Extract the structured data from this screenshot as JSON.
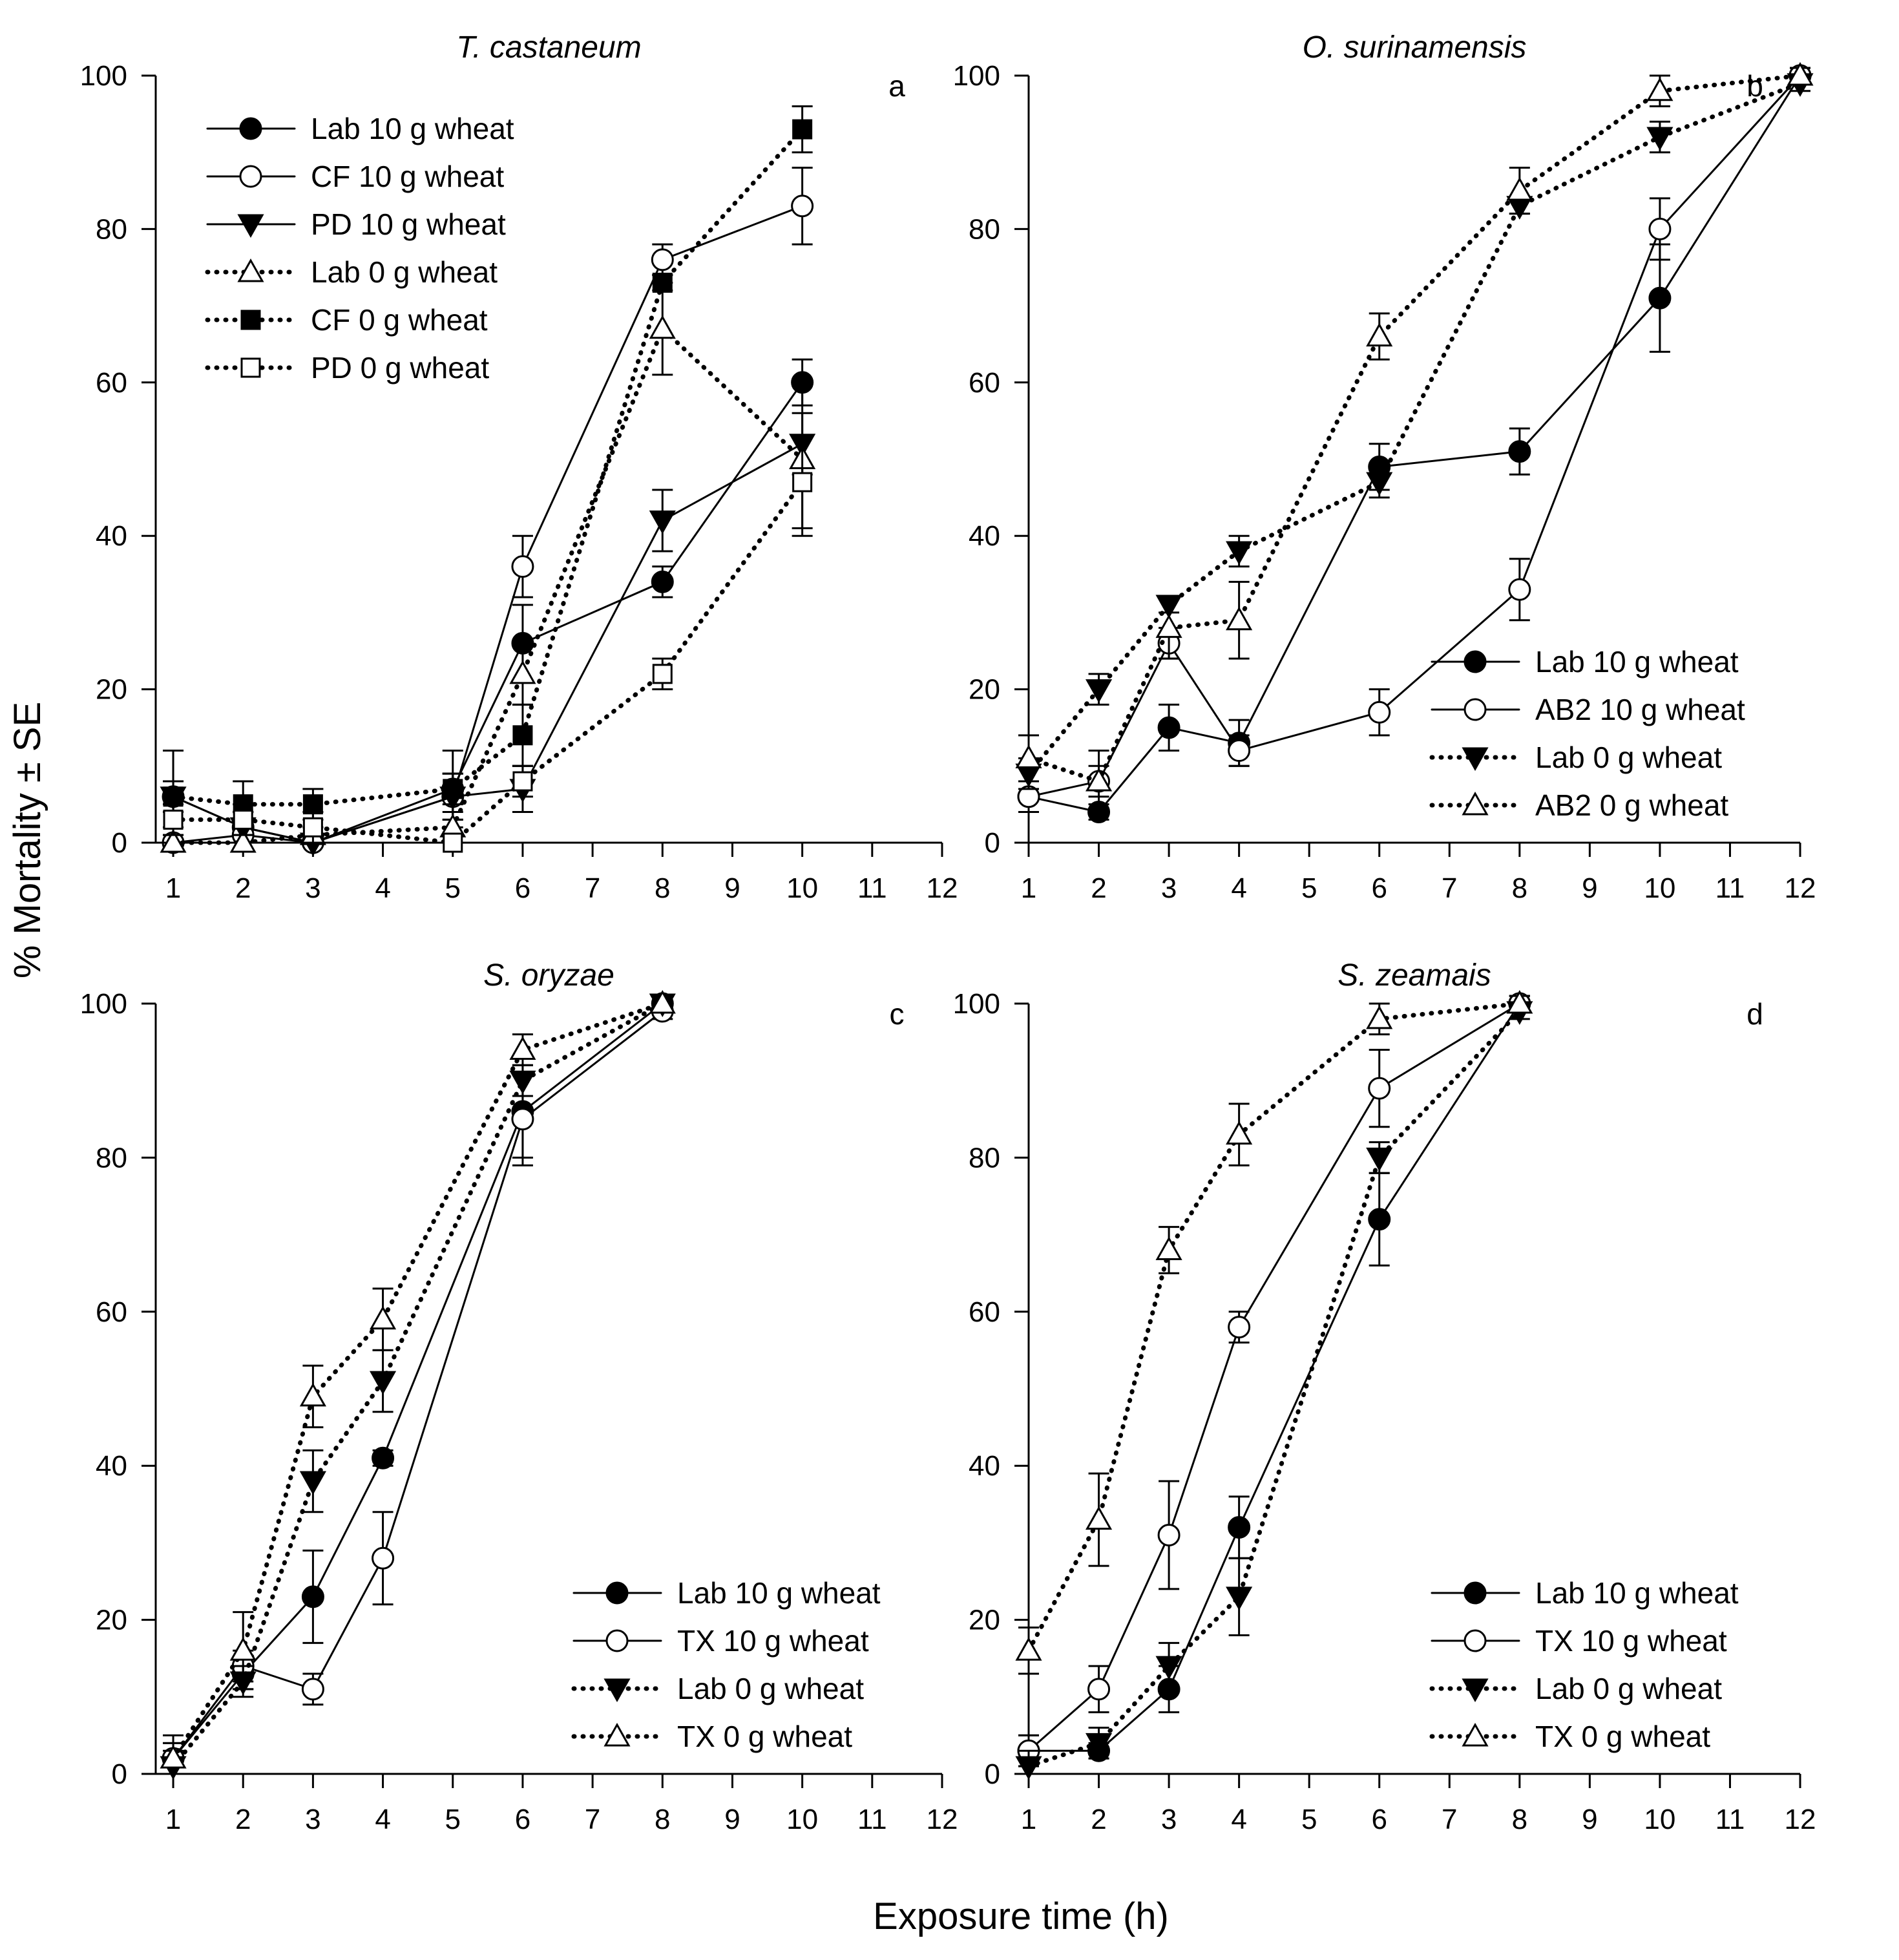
{
  "figure": {
    "ylabel": "% Mortality ± SE",
    "xlabel": "Exposure time (h)"
  },
  "chart_data": [
    {
      "type": "line",
      "panel": "a",
      "title": "T. castaneum",
      "xlim": [
        0.75,
        12
      ],
      "ylim": [
        0,
        100
      ],
      "xticks": [
        1,
        2,
        3,
        4,
        5,
        6,
        7,
        8,
        9,
        10,
        11,
        12
      ],
      "yticks": [
        0,
        20,
        40,
        60,
        80,
        100
      ],
      "legend_position": "top-left",
      "series": [
        {
          "name": "Lab 10 g wheat",
          "style": "solid",
          "marker": "circle-filled",
          "x": [
            1,
            2,
            3,
            5,
            6,
            8,
            10
          ],
          "y": [
            6,
            2,
            0,
            7,
            26,
            34,
            60
          ],
          "err": [
            6,
            2,
            1,
            5,
            5,
            2,
            3
          ]
        },
        {
          "name": "CF 10 g wheat",
          "style": "solid",
          "marker": "circle-open",
          "x": [
            1,
            2,
            3,
            5,
            6,
            8,
            10
          ],
          "y": [
            0,
            1,
            0,
            6,
            36,
            76,
            83
          ],
          "err": [
            2,
            2,
            1,
            3,
            4,
            2,
            5
          ]
        },
        {
          "name": "PD 10 g wheat",
          "style": "solid",
          "marker": "triangle-down-filled",
          "x": [
            1,
            2,
            3,
            5,
            6,
            8,
            10
          ],
          "y": [
            6,
            2,
            0,
            6,
            7,
            42,
            52
          ],
          "err": [
            2,
            2,
            1,
            3,
            3,
            4,
            4
          ]
        },
        {
          "name": "Lab 0 g wheat",
          "style": "dotted",
          "marker": "triangle-up-open",
          "x": [
            1,
            2,
            3,
            5,
            6,
            8,
            10
          ],
          "y": [
            0,
            0,
            1,
            2,
            22,
            67,
            50
          ],
          "err": [
            1,
            1,
            1,
            2,
            4,
            6,
            10
          ]
        },
        {
          "name": "CF 0 g wheat",
          "style": "dotted",
          "marker": "square-filled",
          "x": [
            1,
            2,
            3,
            5,
            6,
            8,
            10
          ],
          "y": [
            6,
            5,
            5,
            7,
            14,
            73,
            93
          ],
          "err": [
            2,
            3,
            2,
            2,
            4,
            1,
            3
          ]
        },
        {
          "name": "PD 0 g wheat",
          "style": "dotted",
          "marker": "square-open",
          "x": [
            1,
            2,
            3,
            5,
            6,
            8,
            10
          ],
          "y": [
            3,
            3,
            2,
            0,
            8,
            22,
            47
          ],
          "err": [
            2,
            2,
            2,
            1,
            2,
            2,
            6
          ]
        }
      ]
    },
    {
      "type": "line",
      "panel": "b",
      "title": "O. surinamensis",
      "xlim": [
        1,
        12
      ],
      "ylim": [
        0,
        100
      ],
      "xticks": [
        1,
        2,
        3,
        4,
        5,
        6,
        7,
        8,
        9,
        10,
        11,
        12
      ],
      "yticks": [
        0,
        20,
        40,
        60,
        80,
        100
      ],
      "legend_position": "bottom-right",
      "series": [
        {
          "name": "Lab 10 g wheat",
          "style": "solid",
          "marker": "circle-filled",
          "x": [
            1,
            2,
            3,
            4,
            6,
            8,
            10,
            12
          ],
          "y": [
            6,
            4,
            15,
            13,
            49,
            51,
            71,
            100
          ],
          "err": [
            2,
            1,
            3,
            3,
            3,
            3,
            7,
            1
          ]
        },
        {
          "name": "AB2 10 g wheat",
          "style": "solid",
          "marker": "circle-open",
          "x": [
            1,
            2,
            3,
            4,
            6,
            8,
            10,
            12
          ],
          "y": [
            6,
            8,
            26,
            12,
            17,
            33,
            80,
            100
          ],
          "err": [
            2,
            2,
            2,
            2,
            3,
            4,
            4,
            1
          ]
        },
        {
          "name": "Lab 0 g wheat",
          "style": "dotted",
          "marker": "triangle-down-filled",
          "x": [
            1,
            2,
            3,
            4,
            6,
            8,
            10,
            12
          ],
          "y": [
            9,
            20,
            31,
            38,
            47,
            83,
            92,
            99
          ],
          "err": [
            2,
            2,
            1,
            2,
            2,
            1,
            2,
            1
          ]
        },
        {
          "name": "AB2 0 g wheat",
          "style": "dotted",
          "marker": "triangle-up-open",
          "x": [
            1,
            2,
            3,
            4,
            6,
            8,
            10,
            12
          ],
          "y": [
            11,
            8,
            28,
            29,
            66,
            85,
            98,
            100
          ],
          "err": [
            3,
            4,
            4,
            5,
            3,
            3,
            2,
            1
          ]
        }
      ]
    },
    {
      "type": "line",
      "panel": "c",
      "title": "S. oryzae",
      "xlim": [
        0.75,
        12
      ],
      "ylim": [
        0,
        100
      ],
      "xticks": [
        1,
        2,
        3,
        4,
        5,
        6,
        7,
        8,
        9,
        10,
        11,
        12
      ],
      "yticks": [
        0,
        20,
        40,
        60,
        80,
        100
      ],
      "legend_position": "bottom-right",
      "series": [
        {
          "name": "Lab 10 g wheat",
          "style": "solid",
          "marker": "circle-filled",
          "x": [
            1,
            2,
            3,
            4,
            6,
            8
          ],
          "y": [
            2,
            13,
            23,
            41,
            86,
            100
          ],
          "err": [
            3,
            2,
            6,
            1,
            6,
            1
          ]
        },
        {
          "name": "TX 10 g wheat",
          "style": "solid",
          "marker": "circle-open",
          "x": [
            1,
            2,
            3,
            4,
            6,
            8
          ],
          "y": [
            2,
            14,
            11,
            28,
            85,
            99
          ],
          "err": [
            2,
            2,
            2,
            6,
            6,
            1
          ]
        },
        {
          "name": "Lab 0 g wheat",
          "style": "dotted",
          "marker": "triangle-down-filled",
          "x": [
            1,
            2,
            3,
            4,
            6,
            8
          ],
          "y": [
            1,
            12,
            38,
            51,
            90,
            100
          ],
          "err": [
            2,
            2,
            4,
            4,
            2,
            1
          ]
        },
        {
          "name": "TX 0 g wheat",
          "style": "dotted",
          "marker": "triangle-up-open",
          "x": [
            1,
            2,
            3,
            4,
            6,
            8
          ],
          "y": [
            2,
            16,
            49,
            59,
            94,
            100
          ],
          "err": [
            2,
            5,
            4,
            4,
            2,
            1
          ]
        }
      ]
    },
    {
      "type": "line",
      "panel": "d",
      "title": "S. zeamais",
      "xlim": [
        1,
        12
      ],
      "ylim": [
        0,
        100
      ],
      "xticks": [
        1,
        2,
        3,
        4,
        5,
        6,
        7,
        8,
        9,
        10,
        11,
        12
      ],
      "yticks": [
        0,
        20,
        40,
        60,
        80,
        100
      ],
      "legend_position": "bottom-right",
      "series": [
        {
          "name": "Lab 10 g wheat",
          "style": "solid",
          "marker": "circle-filled",
          "x": [
            1,
            2,
            3,
            4,
            6,
            8
          ],
          "y": [
            3,
            3,
            11,
            32,
            72,
            100
          ],
          "err": [
            2,
            1,
            3,
            4,
            6,
            1
          ]
        },
        {
          "name": "TX 10 g wheat",
          "style": "solid",
          "marker": "circle-open",
          "x": [
            1,
            2,
            3,
            4,
            6,
            8
          ],
          "y": [
            3,
            11,
            31,
            58,
            89,
            100
          ],
          "err": [
            2,
            3,
            7,
            2,
            5,
            1
          ]
        },
        {
          "name": "Lab 0 g wheat",
          "style": "dotted",
          "marker": "triangle-down-filled",
          "x": [
            1,
            2,
            3,
            4,
            6,
            8
          ],
          "y": [
            1,
            4,
            14,
            23,
            80,
            99
          ],
          "err": [
            2,
            2,
            3,
            5,
            2,
            1
          ]
        },
        {
          "name": "TX 0 g wheat",
          "style": "dotted",
          "marker": "triangle-up-open",
          "x": [
            1,
            2,
            3,
            4,
            6,
            8
          ],
          "y": [
            16,
            33,
            68,
            83,
            98,
            100
          ],
          "err": [
            3,
            6,
            3,
            4,
            2,
            1
          ]
        }
      ]
    }
  ]
}
